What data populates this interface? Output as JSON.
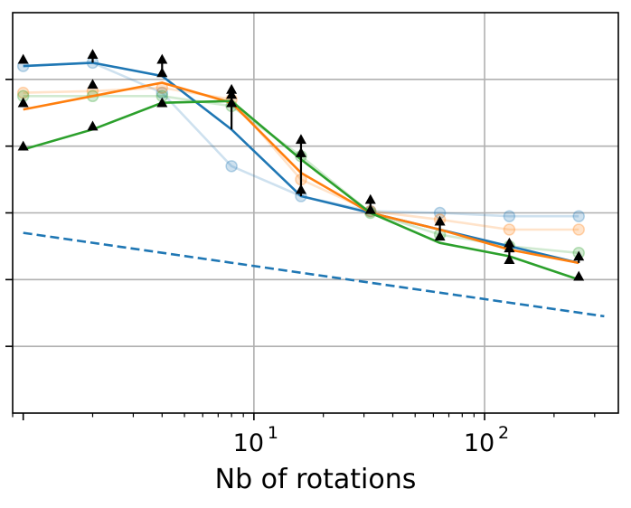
{
  "chart_data": {
    "type": "line",
    "title": "",
    "xlabel": "Nb of rotations",
    "ylabel": "",
    "xscale": "log",
    "xlim": [
      0.9,
      380
    ],
    "ylim": [
      0,
      1.2
    ],
    "grid": true,
    "x_major_ticks": [
      {
        "value": 10,
        "base": "10",
        "exp": "1"
      },
      {
        "value": 100,
        "base": "10",
        "exp": "2"
      }
    ],
    "y_gridlines": [
      0.2,
      0.4,
      0.6,
      0.8,
      1.0
    ],
    "x": [
      1,
      2,
      4,
      8,
      16,
      32,
      64,
      128,
      256
    ],
    "series": [
      {
        "name": "blue-faint",
        "color": "#1f77b4",
        "style": "faint-marker",
        "values": [
          1.04,
          1.05,
          0.96,
          0.74,
          0.65,
          0.605,
          0.6,
          0.59,
          0.59
        ]
      },
      {
        "name": "orange-faint",
        "color": "#ff7f0e",
        "style": "faint-marker",
        "values": [
          0.96,
          0.965,
          0.975,
          0.94,
          0.7,
          0.605,
          0.58,
          0.55,
          0.55
        ]
      },
      {
        "name": "green-faint",
        "color": "#2ca02c",
        "style": "faint-marker",
        "values": [
          0.95,
          0.95,
          0.95,
          0.92,
          0.77,
          0.6,
          0.535,
          0.5,
          0.48
        ]
      },
      {
        "name": "blue",
        "color": "#1f77b4",
        "style": "solid",
        "values": [
          1.04,
          1.05,
          1.01,
          0.85,
          0.65,
          0.6,
          0.55,
          0.5,
          0.45
        ]
      },
      {
        "name": "orange",
        "color": "#ff7f0e",
        "style": "solid",
        "values": [
          0.91,
          0.95,
          0.99,
          0.93,
          0.72,
          0.6,
          0.55,
          0.49,
          0.45
        ]
      },
      {
        "name": "green",
        "color": "#2ca02c",
        "style": "solid",
        "values": [
          0.79,
          0.85,
          0.93,
          0.935,
          0.76,
          0.6,
          0.51,
          0.47,
          0.4
        ]
      },
      {
        "name": "reference",
        "color": "#1f77b4",
        "style": "dashed",
        "x": [
          1,
          330
        ],
        "values": [
          0.54,
          0.29
        ]
      }
    ],
    "markers": {
      "symbol": "triangle-up",
      "color": "#000000",
      "points": [
        [
          1,
          1.06
        ],
        [
          1,
          0.93
        ],
        [
          1,
          0.8
        ],
        [
          2,
          1.075
        ],
        [
          2,
          0.985
        ],
        [
          2,
          0.86
        ],
        [
          4,
          1.06
        ],
        [
          4,
          1.02
        ],
        [
          4,
          0.93
        ],
        [
          8,
          0.97
        ],
        [
          8,
          0.955
        ],
        [
          8,
          0.93
        ],
        [
          16,
          0.82
        ],
        [
          16,
          0.78
        ],
        [
          16,
          0.67
        ],
        [
          32,
          0.64
        ],
        [
          32,
          0.61
        ],
        [
          64,
          0.575
        ],
        [
          64,
          0.53
        ],
        [
          128,
          0.51
        ],
        [
          128,
          0.495
        ],
        [
          128,
          0.46
        ],
        [
          256,
          0.47
        ],
        [
          256,
          0.41
        ]
      ]
    },
    "error_bars": [
      {
        "x": 2,
        "from": 1.05,
        "to": 1.075
      },
      {
        "x": 4,
        "from": 1.01,
        "to": 1.06
      },
      {
        "x": 8,
        "from": 0.85,
        "to": 0.97
      },
      {
        "x": 16,
        "from": 0.65,
        "to": 0.82
      },
      {
        "x": 32,
        "from": 0.6,
        "to": 0.64
      },
      {
        "x": 64,
        "from": 0.53,
        "to": 0.575
      },
      {
        "x": 128,
        "from": 0.47,
        "to": 0.51
      },
      {
        "x": 256,
        "from": 0.45,
        "to": 0.47
      }
    ]
  }
}
